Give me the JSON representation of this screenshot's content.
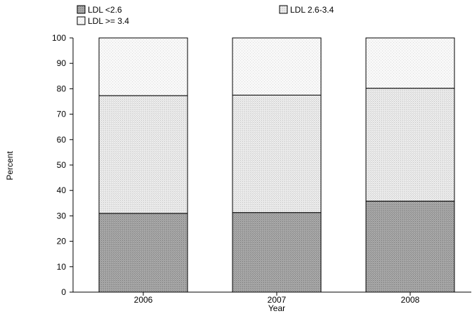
{
  "chart_data": {
    "type": "bar",
    "stacked": true,
    "categories": [
      "2006",
      "2007",
      "2008"
    ],
    "series": [
      {
        "name": "LDL <2.6",
        "values": [
          31,
          31.3,
          35.8
        ],
        "color": "#9a9a9a"
      },
      {
        "name": "LDL 2.6-3.4",
        "values": [
          46.3,
          46.2,
          44.4
        ],
        "color": "#e2e2e2"
      },
      {
        "name": "LDL >= 3.4",
        "values": [
          22.7,
          22.5,
          19.8
        ],
        "color": "#f3f3f3"
      }
    ],
    "xlabel": "Year",
    "ylabel": "Percent",
    "ylim": [
      0,
      100
    ],
    "yticks": [
      0,
      10,
      20,
      30,
      40,
      50,
      60,
      70,
      80,
      90,
      100
    ],
    "grid": false,
    "legend_position": "top"
  }
}
